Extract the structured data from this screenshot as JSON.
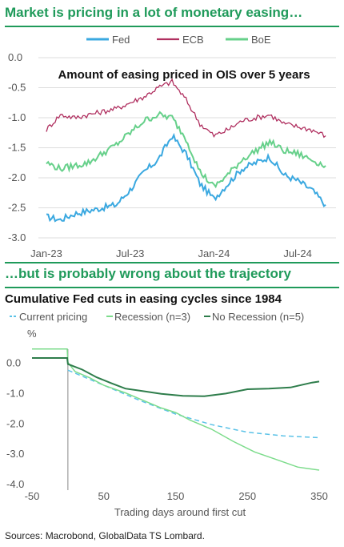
{
  "header1": "Market is pricing in a lot of monetary easing…",
  "header2": "…but is probably wrong about the trajectory",
  "source": "Sources: Macrobond, GlobalData TS Lombard.",
  "colors": {
    "accent": "#1f9a5a",
    "fed": "#3aa8e0",
    "ecb": "#b03060",
    "boe": "#66d08a",
    "current": "#5bc2e7",
    "recession": "#7ddc8c",
    "norecession": "#2e7d4b"
  },
  "chart_data": [
    {
      "type": "line",
      "title": "Amount of easing priced in OIS over 5 years",
      "xlabel": "",
      "ylabel": "",
      "x_ticks": [
        "Jan-23",
        "Jul-23",
        "Jan-24",
        "Jul-24"
      ],
      "y_ticks": [
        "0.0",
        "-0.5",
        "-1.0",
        "-1.5",
        "-2.0",
        "-2.5",
        "-3.0"
      ],
      "ylim": [
        -3.0,
        0.0
      ],
      "grid": "horizontal",
      "legend": "top",
      "x_month_index": [
        0,
        1,
        2,
        3,
        4,
        5,
        6,
        7,
        8,
        9,
        10,
        11,
        12,
        13,
        14,
        15,
        16,
        17,
        18,
        19,
        20
      ],
      "series": [
        {
          "name": "Fed",
          "values": [
            -2.65,
            -2.7,
            -2.6,
            -2.55,
            -2.5,
            -2.45,
            -2.2,
            -1.9,
            -1.7,
            -1.3,
            -1.6,
            -2.1,
            -2.35,
            -2.1,
            -1.85,
            -1.75,
            -1.65,
            -1.95,
            -2.05,
            -2.2,
            -2.45
          ]
        },
        {
          "name": "ECB",
          "values": [
            -1.2,
            -0.95,
            -1.0,
            -0.95,
            -0.9,
            -0.85,
            -0.75,
            -0.65,
            -0.5,
            -0.4,
            -0.7,
            -1.1,
            -1.3,
            -1.2,
            -1.05,
            -1.0,
            -0.95,
            -1.1,
            -1.15,
            -1.2,
            -1.3
          ]
        },
        {
          "name": "BoE",
          "values": [
            -1.75,
            -1.85,
            -1.8,
            -1.75,
            -1.6,
            -1.45,
            -1.25,
            -1.05,
            -0.95,
            -1.0,
            -1.35,
            -1.9,
            -2.15,
            -1.95,
            -1.7,
            -1.55,
            -1.4,
            -1.55,
            -1.6,
            -1.7,
            -1.8
          ]
        }
      ]
    },
    {
      "type": "line",
      "title": "Cumulative Fed cuts in easing cycles since 1984",
      "xlabel": "Trading days around first cut",
      "ylabel": "%",
      "xlim": [
        -50,
        360
      ],
      "ylim": [
        -4.0,
        0.6
      ],
      "x_ticks": [
        "-50",
        "50",
        "150",
        "250",
        "350"
      ],
      "y_ticks": [
        "0.0",
        "-1.0",
        "-2.0",
        "-3.0",
        "-4.0"
      ],
      "legend": "top",
      "series": [
        {
          "name": "Current pricing",
          "style": "dashed",
          "x": [
            0,
            30,
            60,
            100,
            150,
            200,
            250,
            300,
            350
          ],
          "y": [
            -0.25,
            -0.55,
            -0.85,
            -1.25,
            -1.7,
            -2.05,
            -2.3,
            -2.42,
            -2.48
          ]
        },
        {
          "name": "Recession (n=3)",
          "x": [
            -50,
            -30,
            -15,
            -1,
            0,
            10,
            30,
            50,
            80,
            100,
            130,
            150,
            170,
            200,
            230,
            260,
            290,
            320,
            350
          ],
          "y": [
            0.45,
            0.45,
            0.45,
            0.45,
            0.0,
            -0.3,
            -0.5,
            -0.75,
            -1.0,
            -1.2,
            -1.5,
            -1.65,
            -1.9,
            -2.2,
            -2.6,
            -2.95,
            -3.2,
            -3.45,
            -3.55
          ]
        },
        {
          "name": "No Recession (n=5)",
          "x": [
            -50,
            -20,
            -1,
            0,
            20,
            40,
            60,
            80,
            100,
            130,
            160,
            190,
            220,
            250,
            280,
            310,
            340,
            350
          ],
          "y": [
            0.15,
            0.15,
            0.15,
            -0.05,
            -0.25,
            -0.5,
            -0.7,
            -0.85,
            -0.95,
            -1.05,
            -1.1,
            -1.1,
            -1.0,
            -0.9,
            -0.85,
            -0.8,
            -0.68,
            -0.62
          ]
        }
      ]
    }
  ]
}
